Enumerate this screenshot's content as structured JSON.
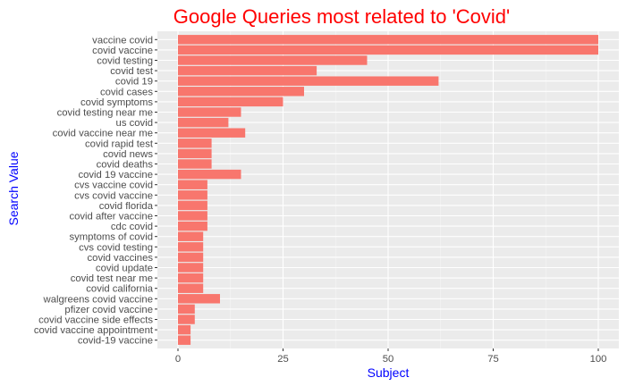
{
  "chart_data": {
    "type": "bar",
    "orientation": "horizontal",
    "title": "Google Queries most related to 'Covid'",
    "xlabel": "Subject",
    "ylabel": "Search Value",
    "xlim": [
      0,
      100
    ],
    "xticks": [
      0,
      25,
      50,
      75,
      100
    ],
    "grid": true,
    "colors": {
      "bar": "#f8766d",
      "panel": "#ebebeb",
      "grid_major": "#ffffff",
      "title": "#ff0000",
      "axis_title": "#0000ff",
      "tick_label": "#4d4d4d"
    },
    "categories": [
      "vaccine covid",
      "covid vaccine",
      "covid testing",
      "covid test",
      "covid 19",
      "covid cases",
      "covid symptoms",
      "covid testing near me",
      "us covid",
      "covid vaccine near me",
      "covid rapid test",
      "covid news",
      "covid deaths",
      "covid 19 vaccine",
      "cvs vaccine covid",
      "cvs covid vaccine",
      "covid florida",
      "covid after vaccine",
      "cdc covid",
      "symptoms of covid",
      "cvs covid testing",
      "covid vaccines",
      "covid update",
      "covid test near me",
      "covid california",
      "walgreens covid vaccine",
      "pfizer covid vaccine",
      "covid vaccine side effects",
      "covid vaccine appointment",
      "covid-19 vaccine"
    ],
    "values": [
      100,
      100,
      45,
      33,
      62,
      30,
      25,
      15,
      12,
      16,
      8,
      8,
      8,
      15,
      7,
      7,
      7,
      7,
      7,
      6,
      6,
      6,
      6,
      6,
      6,
      10,
      4,
      4,
      3,
      3
    ]
  }
}
